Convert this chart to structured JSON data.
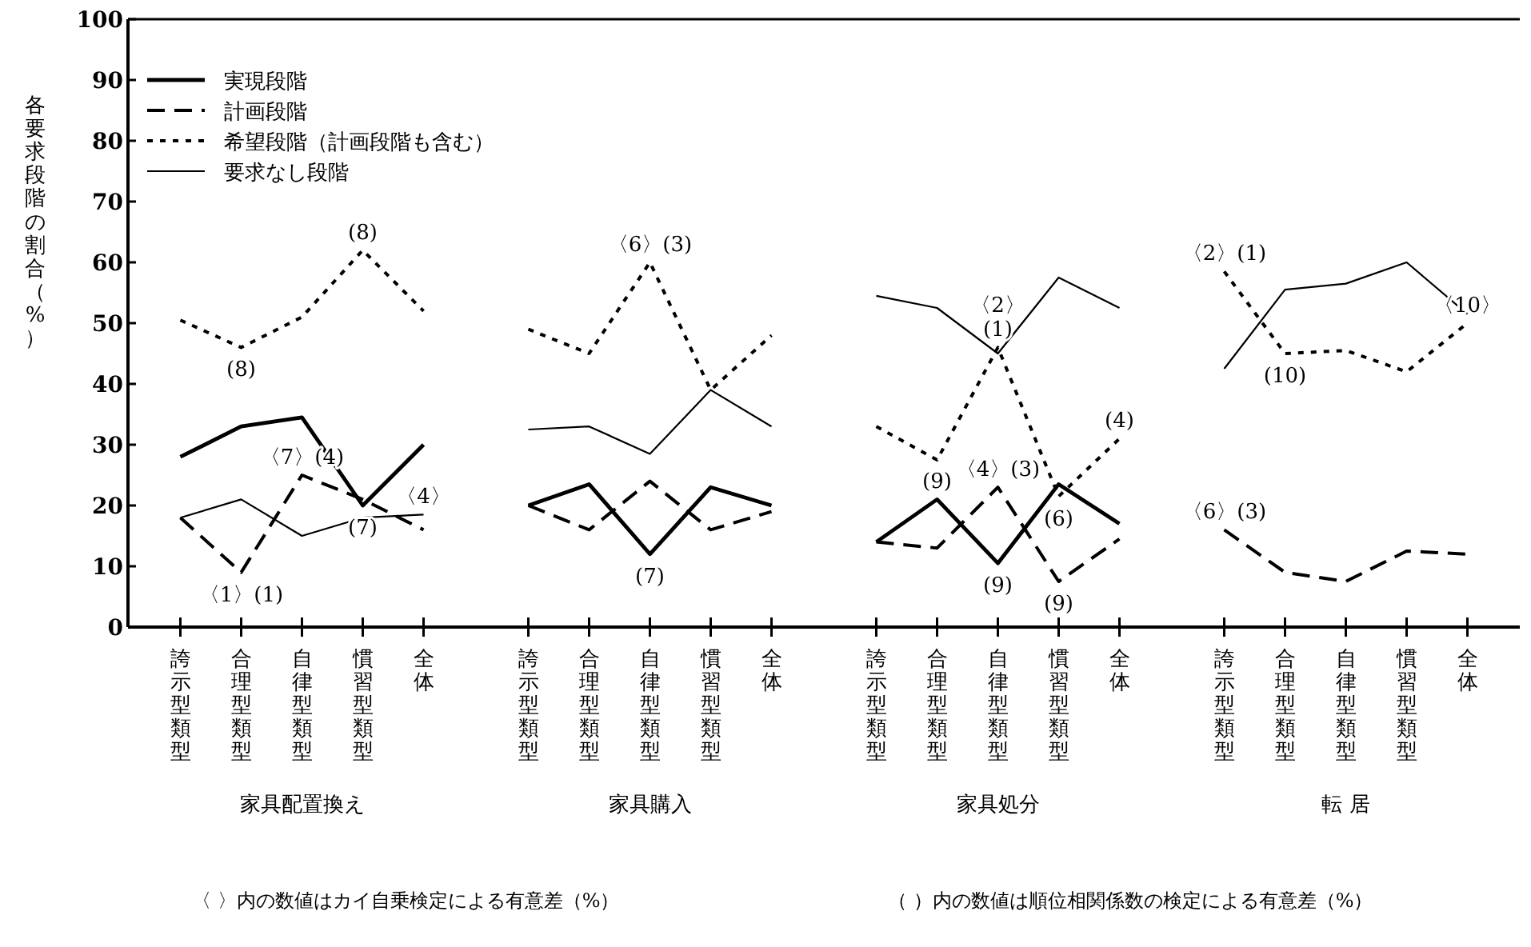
{
  "chart_data": [
    {
      "type": "line",
      "categories": [
        "誇示型類型",
        "合理型類型",
        "自律型類型",
        "慣習型類型",
        "全体"
      ],
      "xlabel": "家具配置換え",
      "ylabel": "各要求段階の割合（%）",
      "ylim": [
        0,
        100
      ],
      "yticks": [
        0,
        10,
        20,
        30,
        40,
        50,
        60,
        70,
        80,
        90,
        100
      ],
      "legend": "top",
      "series": [
        {
          "name": "実現段階",
          "color": "#000000",
          "line_style": "solid",
          "values": [
            28,
            33,
            34.5,
            20,
            30
          ]
        },
        {
          "name": "計画段階",
          "color": "#000000",
          "line_style": "dashed",
          "values": [
            18,
            9,
            25,
            21,
            16
          ]
        },
        {
          "name": "希望段階（計画段階も含む）",
          "color": "#000000",
          "line_style": "dotted",
          "values": [
            50.5,
            46,
            51,
            62,
            52
          ]
        },
        {
          "name": "要求なし段階",
          "color": "#000000",
          "line_style": "solid",
          "values": [
            18,
            21,
            15,
            18,
            18.5
          ]
        }
      ],
      "annotations": [
        {
          "text": "(8)",
          "x": "慣習型類型",
          "y": 62
        },
        {
          "text": "(8)",
          "x": "合理型類型",
          "y": 46
        },
        {
          "text": "〈7〉(4)",
          "x": "自律型類型",
          "y": 25
        },
        {
          "text": "(7)",
          "x": "慣習型類型",
          "y": 20
        },
        {
          "text": "〈4〉",
          "x": "全体",
          "y": 18.5
        },
        {
          "text": "〈1〉(1)",
          "x": "合理型類型",
          "y": 9
        },
        "〈 〉内の数値はカイ自乗検定による有意差（%）"
      ]
    },
    {
      "type": "line",
      "categories": [
        "誇示型類型",
        "合理型類型",
        "自律型類型",
        "慣習型類型",
        "全体"
      ],
      "xlabel": "家具購入",
      "ylim": [
        0,
        100
      ],
      "tick_labels": "x",
      "series": [
        {
          "color": "#000000",
          "line_style": "solid",
          "values": [
            20,
            23.5,
            12,
            23,
            20
          ]
        },
        {
          "color": "#000000",
          "line_style": "dashed",
          "values": [
            20,
            16,
            24,
            16,
            19
          ]
        },
        {
          "color": "#000000",
          "line_style": "dotted",
          "values": [
            49,
            45,
            60,
            39,
            48
          ]
        },
        {
          "color": "#000000",
          "line_style": "solid",
          "values": [
            32.5,
            33,
            28.5,
            39,
            33
          ]
        }
      ],
      "annotations": [
        {
          "text": "〈6〉(3)",
          "x": "自律型類型",
          "y": 60
        },
        {
          "text": "(7)",
          "x": "自律型類型",
          "y": 12
        }
      ]
    },
    {
      "type": "line",
      "categories": [
        "誇示型類型",
        "合理型類型",
        "自律型類型",
        "慣習型類型",
        "全体"
      ],
      "xlabel": "家具処分",
      "ylim": [
        0,
        100
      ],
      "tick_labels": "x",
      "series": [
        {
          "color": "#000000",
          "line_style": "solid",
          "values": [
            14,
            21,
            10.5,
            23.5,
            17
          ]
        },
        {
          "color": "#000000",
          "line_style": "dashed",
          "values": [
            14,
            13,
            23,
            7.5,
            14.5
          ]
        },
        {
          "color": "#000000",
          "line_style": "dotted",
          "values": [
            33,
            27.5,
            46,
            21.5,
            31
          ]
        },
        {
          "color": "#000000",
          "line_style": "solid",
          "values": [
            54.5,
            52.5,
            45,
            57.5,
            52.5
          ]
        }
      ],
      "annotations": [
        {
          "text": "(1)",
          "x": "自律型類型",
          "y": 46
        },
        {
          "text": "〈2〉",
          "x": "自律型類型",
          "y": 46
        },
        {
          "text": "(9)",
          "x": "合理型類型",
          "y": 21
        },
        {
          "text": "〈4〉(3)",
          "x": "自律型類型",
          "y": 23
        },
        {
          "text": "(9)",
          "x": "自律型類型",
          "y": 10.5
        },
        {
          "text": "(6)",
          "x": "慣習型類型",
          "y": 21.5
        },
        {
          "text": "(9)",
          "x": "慣習型類型",
          "y": 7.5
        },
        {
          "text": "(4)",
          "x": "全体",
          "y": 31
        },
        "（ ）内の数値は順位相関係数の検定による有意差（%）"
      ]
    },
    {
      "type": "line",
      "categories": [
        "誇示型類型",
        "合理型類型",
        "自律型類型",
        "慣習型類型",
        "全体"
      ],
      "xlabel": "転 居",
      "ylim": [
        0,
        100
      ],
      "tick_labels": "x",
      "series": [
        {
          "color": "#000000",
          "line_style": "solid",
          "values": [
            null,
            null,
            null,
            null,
            null
          ]
        },
        {
          "color": "#000000",
          "line_style": "dashed",
          "values": [
            16,
            9,
            7.5,
            12.5,
            12
          ]
        },
        {
          "color": "#000000",
          "line_style": "dotted",
          "values": [
            58.5,
            45,
            45.5,
            42,
            50
          ]
        },
        {
          "color": "#000000",
          "line_style": "solid",
          "values": [
            42.5,
            55.5,
            56.5,
            60,
            51.5
          ]
        }
      ],
      "annotations": [
        {
          "text": "〈2〉(1)",
          "x": "誇示型類型",
          "y": 58.5
        },
        {
          "text": "(10)",
          "x": "合理型類型",
          "y": 45
        },
        {
          "text": "〈10〉",
          "x": "全体",
          "y": 50
        },
        {
          "text": "〈6〉(3)",
          "x": "誇示型類型",
          "y": 16
        }
      ]
    }
  ]
}
